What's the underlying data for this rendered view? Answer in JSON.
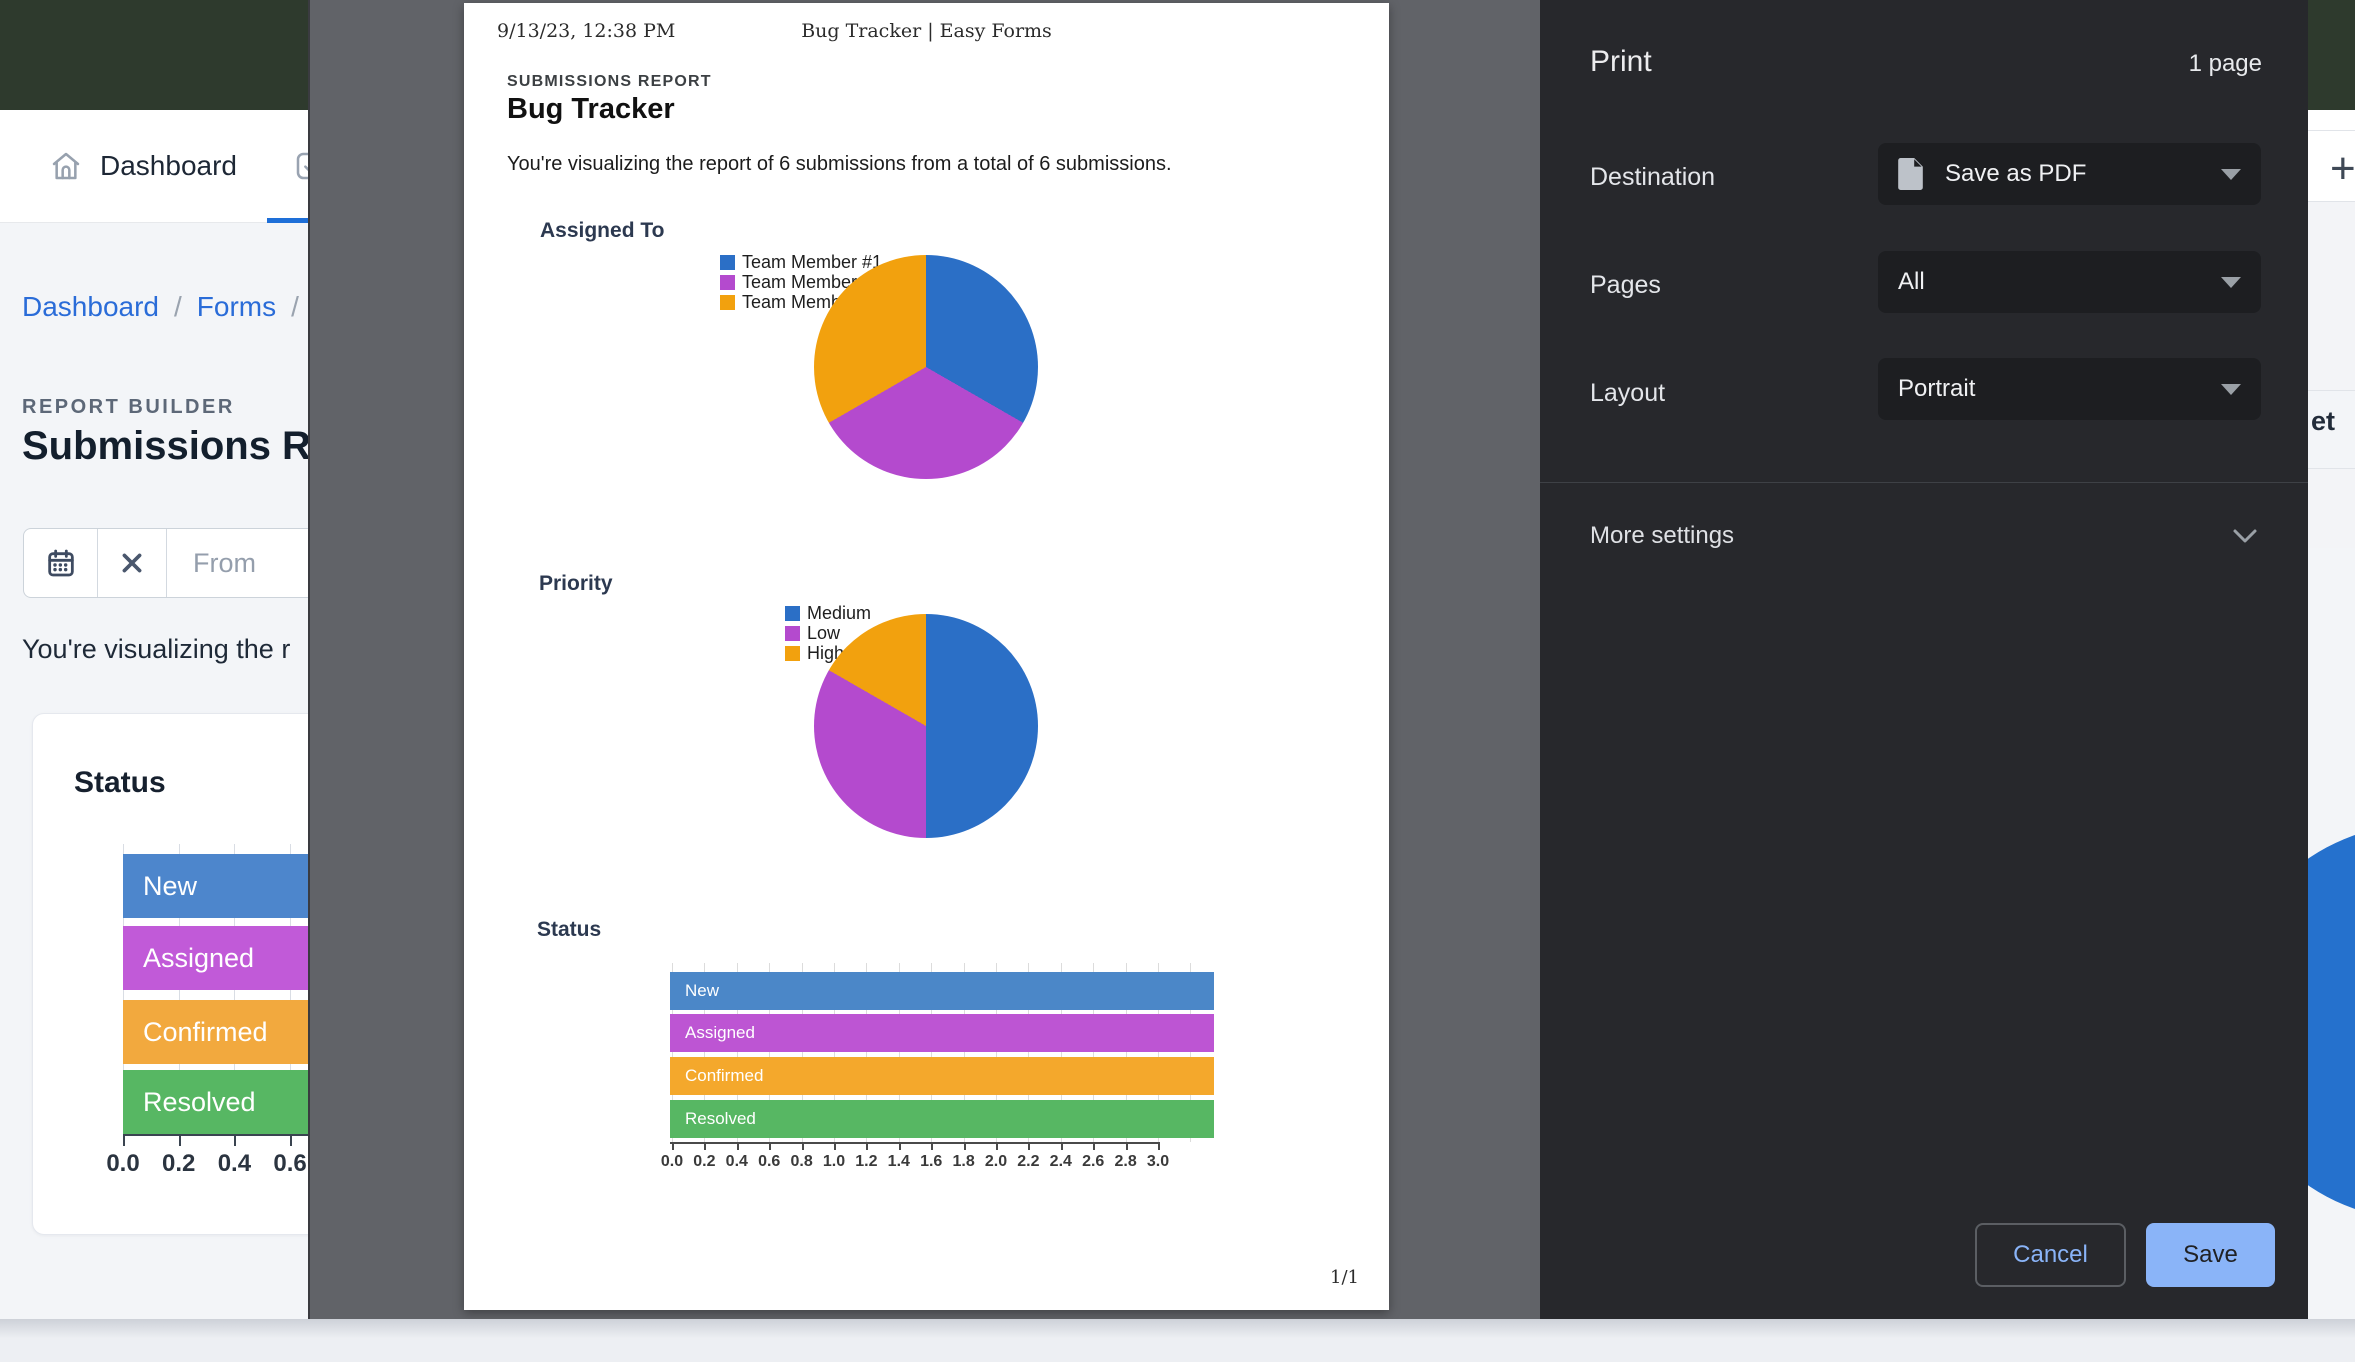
{
  "app": {
    "nav": {
      "home_tab": "Dashboard"
    },
    "breadcrumb": {
      "links": [
        "Dashboard",
        "Forms"
      ],
      "separator": "/"
    },
    "eyebrow": "REPORT BUILDER",
    "page_title_visible": "Submissions Re",
    "filter": {
      "from_placeholder": "From"
    },
    "intro_visible": "You're visualizing the r",
    "status_card_title": "Status",
    "right_edge": {
      "plus_label": "+",
      "button_text_visible": "et"
    },
    "colors": {
      "header_green": "#2e3a2d",
      "link_blue": "#2a6cd8",
      "active_tab_underline": "#1e6fd8",
      "accent_circle_blue": "#2571cd"
    }
  },
  "preview": {
    "header_left": "9/13/23, 12:38 PM",
    "header_center": "Bug Tracker | Easy Forms",
    "eyebrow": "SUBMISSIONS REPORT",
    "title": "Bug Tracker",
    "intro": "You're visualizing the report of 6 submissions from a total of 6 submissions.",
    "section_assigned_to": "Assigned To",
    "section_priority": "Priority",
    "section_status": "Status",
    "footer_page_number": "1/1"
  },
  "print_dialog": {
    "title": "Print",
    "page_count": "1 page",
    "destination_label": "Destination",
    "destination_value": "Save as PDF",
    "pages_label": "Pages",
    "pages_value": "All",
    "layout_label": "Layout",
    "layout_value": "Portrait",
    "more_settings_label": "More settings",
    "cancel_label": "Cancel",
    "save_label": "Save",
    "colors": {
      "panel": "#27282c",
      "control": "#1d1e21",
      "accent": "#8ab4f8",
      "text": "#e8eaed",
      "muted": "#9aa0a6"
    }
  },
  "chart_data": [
    {
      "id": "assigned_to_pie",
      "type": "pie",
      "title": "Assigned To",
      "labels": [
        "Team Member #1",
        "Team Member #2",
        "Team Member #3"
      ],
      "values_pct": [
        33.3,
        33.4,
        33.3
      ],
      "colors": [
        "#2b6fc6",
        "#b44ace",
        "#f2a10e"
      ],
      "legend_position": "left",
      "start_angle_deg": 0
    },
    {
      "id": "priority_pie",
      "type": "pie",
      "title": "Priority",
      "labels": [
        "Medium",
        "Low",
        "High"
      ],
      "values_pct": [
        50,
        33.3,
        16.7
      ],
      "colors": [
        "#2b6fc6",
        "#b44ace",
        "#f2a10e"
      ],
      "legend_position": "left",
      "start_angle_deg": 0
    },
    {
      "id": "preview_status_bars",
      "type": "bar",
      "orientation": "horizontal",
      "title": "Status",
      "categories": [
        "New",
        "Assigned",
        "Confirmed",
        "Resolved"
      ],
      "values": [
        3.36,
        3.36,
        3.36,
        3.36
      ],
      "xlim": [
        0,
        3.0
      ],
      "tick_step": 0.2,
      "tick_labels": [
        "0.0",
        "0.2",
        "0.4",
        "0.6",
        "0.8",
        "1.0",
        "1.2",
        "1.4",
        "1.6",
        "1.8",
        "2.0",
        "2.2",
        "2.4",
        "2.6",
        "2.8",
        "3.0"
      ],
      "colors": [
        "#4b87c8",
        "#bd55d3",
        "#f4a82c",
        "#57b763"
      ],
      "grid": true,
      "note": "all four bars render at equal full width, extending slightly past the 3.0 tick"
    },
    {
      "id": "app_status_bars",
      "type": "bar",
      "orientation": "horizontal",
      "title": "Status",
      "categories": [
        "New",
        "Assigned",
        "Confirmed",
        "Resolved"
      ],
      "values": [
        null,
        null,
        null,
        null
      ],
      "xlim_visible": [
        0,
        0.6
      ],
      "tick_step": 0.2,
      "tick_labels": [
        "0.0",
        "0.2",
        "0.4",
        "0.6"
      ],
      "colors": [
        "#4d86cc",
        "#c15ad8",
        "#f2a93e",
        "#57b763"
      ],
      "grid": true,
      "note": "chart truncated by the print overlay; bars run past the visible edge"
    }
  ]
}
